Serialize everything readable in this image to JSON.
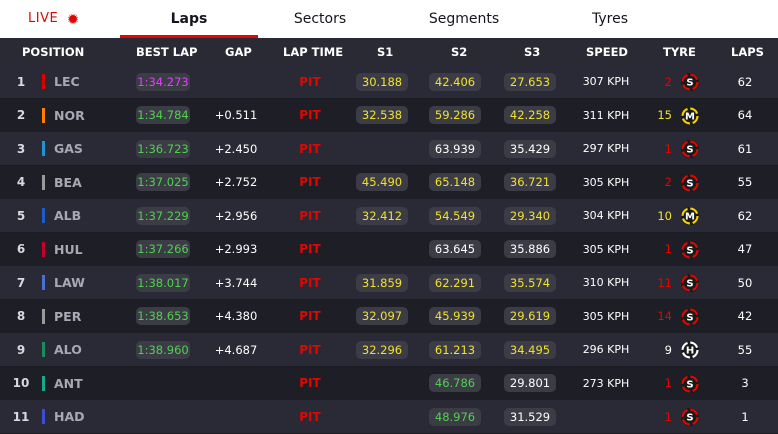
{
  "nav": {
    "live_label": "LIVE",
    "tabs": [
      {
        "label": "Laps",
        "active": true
      },
      {
        "label": "Sectors",
        "active": false
      },
      {
        "label": "Segments",
        "active": false
      },
      {
        "label": "Tyres",
        "active": false
      }
    ]
  },
  "columns": {
    "position": "POSITION",
    "best_lap": "BEST LAP",
    "gap": "GAP",
    "lap_time": "LAP TIME",
    "s1": "S1",
    "s2": "S2",
    "s3": "S3",
    "speed": "SPEED",
    "tyre": "TYRE",
    "laps": "LAPS"
  },
  "colors": {
    "purple": "#e040fb",
    "green": "#4fd14f",
    "yellow": "#f0e030",
    "white": "#ffffff",
    "red": "#e10600",
    "soft": "#e10600",
    "medium": "#f5d000",
    "hard": "#ffffff"
  },
  "rows": [
    {
      "pos": "1",
      "code": "LEC",
      "team_color": "#dc0000",
      "best_lap": "1:34.273",
      "best_color": "purple",
      "gap": "",
      "lap_time": "PIT",
      "s1": "30.188",
      "s1_color": "yellow",
      "s2": "42.406",
      "s2_color": "yellow",
      "s3": "27.653",
      "s3_color": "yellow",
      "speed": "307 KPH",
      "tyre_age": "2",
      "tyre_age_color": "red",
      "tyre": "S",
      "tyre_icon": "soft-tyre-icon",
      "laps": "62"
    },
    {
      "pos": "2",
      "code": "NOR",
      "team_color": "#ff8000",
      "best_lap": "1:34.784",
      "best_color": "green",
      "gap": "+0.511",
      "lap_time": "PIT",
      "s1": "32.538",
      "s1_color": "yellow",
      "s2": "59.286",
      "s2_color": "yellow",
      "s3": "42.258",
      "s3_color": "yellow",
      "speed": "311 KPH",
      "tyre_age": "15",
      "tyre_age_color": "yellow",
      "tyre": "M",
      "tyre_icon": "medium-tyre-icon",
      "laps": "64"
    },
    {
      "pos": "3",
      "code": "GAS",
      "team_color": "#2293d1",
      "best_lap": "1:36.723",
      "best_color": "green",
      "gap": "+2.450",
      "lap_time": "PIT",
      "s1": "",
      "s1_color": "white",
      "s2": "63.939",
      "s2_color": "white",
      "s3": "35.429",
      "s3_color": "white",
      "speed": "297 KPH",
      "tyre_age": "1",
      "tyre_age_color": "red",
      "tyre": "S",
      "tyre_icon": "soft-tyre-icon",
      "laps": "61"
    },
    {
      "pos": "4",
      "code": "BEA",
      "team_color": "#9a9a9a",
      "best_lap": "1:37.025",
      "best_color": "green",
      "gap": "+2.752",
      "lap_time": "PIT",
      "s1": "45.490",
      "s1_color": "yellow",
      "s2": "65.148",
      "s2_color": "yellow",
      "s3": "36.721",
      "s3_color": "yellow",
      "speed": "305 KPH",
      "tyre_age": "2",
      "tyre_age_color": "red",
      "tyre": "S",
      "tyre_icon": "soft-tyre-icon",
      "laps": "55"
    },
    {
      "pos": "5",
      "code": "ALB",
      "team_color": "#1e5bc6",
      "best_lap": "1:37.229",
      "best_color": "green",
      "gap": "+2.956",
      "lap_time": "PIT",
      "s1": "32.412",
      "s1_color": "yellow",
      "s2": "54.549",
      "s2_color": "yellow",
      "s3": "29.340",
      "s3_color": "yellow",
      "speed": "304 KPH",
      "tyre_age": "10",
      "tyre_age_color": "yellow",
      "tyre": "M",
      "tyre_icon": "medium-tyre-icon",
      "laps": "62"
    },
    {
      "pos": "6",
      "code": "HUL",
      "team_color": "#c4002a",
      "best_lap": "1:37.266",
      "best_color": "green",
      "gap": "+2.993",
      "lap_time": "PIT",
      "s1": "",
      "s1_color": "white",
      "s2": "63.645",
      "s2_color": "white",
      "s3": "35.886",
      "s3_color": "white",
      "speed": "305 KPH",
      "tyre_age": "1",
      "tyre_age_color": "red",
      "tyre": "S",
      "tyre_icon": "soft-tyre-icon",
      "laps": "47"
    },
    {
      "pos": "7",
      "code": "LAW",
      "team_color": "#4a6fd0",
      "best_lap": "1:38.017",
      "best_color": "green",
      "gap": "+3.744",
      "lap_time": "PIT",
      "s1": "31.859",
      "s1_color": "yellow",
      "s2": "62.291",
      "s2_color": "yellow",
      "s3": "35.574",
      "s3_color": "yellow",
      "speed": "310 KPH",
      "tyre_age": "11",
      "tyre_age_color": "red",
      "tyre": "S",
      "tyre_icon": "soft-tyre-icon",
      "laps": "50"
    },
    {
      "pos": "8",
      "code": "PER",
      "team_color": "#9a9a9a",
      "best_lap": "1:38.653",
      "best_color": "green",
      "gap": "+4.380",
      "lap_time": "PIT",
      "s1": "32.097",
      "s1_color": "yellow",
      "s2": "45.939",
      "s2_color": "yellow",
      "s3": "29.619",
      "s3_color": "yellow",
      "speed": "305 KPH",
      "tyre_age": "14",
      "tyre_age_color": "red",
      "tyre": "S",
      "tyre_icon": "soft-tyre-icon",
      "laps": "42"
    },
    {
      "pos": "9",
      "code": "ALO",
      "team_color": "#1d8a5a",
      "best_lap": "1:38.960",
      "best_color": "green",
      "gap": "+4.687",
      "lap_time": "PIT",
      "s1": "32.296",
      "s1_color": "yellow",
      "s2": "61.213",
      "s2_color": "yellow",
      "s3": "34.495",
      "s3_color": "yellow",
      "speed": "296 KPH",
      "tyre_age": "9",
      "tyre_age_color": "white",
      "tyre": "H",
      "tyre_icon": "hard-tyre-icon",
      "laps": "55"
    },
    {
      "pos": "10",
      "code": "ANT",
      "team_color": "#1ba88a",
      "best_lap": "",
      "best_color": "green",
      "gap": "",
      "lap_time": "PIT",
      "s1": "",
      "s1_color": "white",
      "s2": "46.786",
      "s2_color": "green",
      "s3": "29.801",
      "s3_color": "white",
      "speed": "273 KPH",
      "tyre_age": "1",
      "tyre_age_color": "red",
      "tyre": "S",
      "tyre_icon": "soft-tyre-icon",
      "laps": "3"
    },
    {
      "pos": "11",
      "code": "HAD",
      "team_color": "#3a4fd0",
      "best_lap": "",
      "best_color": "green",
      "gap": "",
      "lap_time": "PIT",
      "s1": "",
      "s1_color": "white",
      "s2": "48.976",
      "s2_color": "green",
      "s3": "31.529",
      "s3_color": "white",
      "speed": "",
      "tyre_age": "1",
      "tyre_age_color": "red",
      "tyre": "S",
      "tyre_icon": "soft-tyre-icon",
      "laps": "1"
    }
  ]
}
